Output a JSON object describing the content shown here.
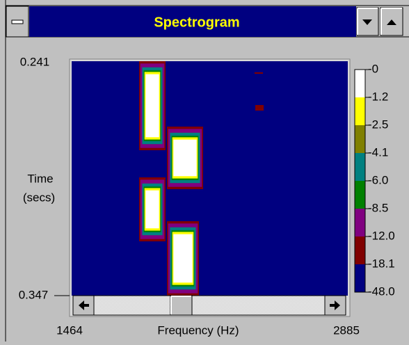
{
  "window": {
    "title": "Spectrogram"
  },
  "plot": {
    "y_top": "0.241",
    "y_bottom": "0.347",
    "y_label": [
      "Time",
      "(secs)"
    ],
    "x_left": "1464",
    "x_right": "2885",
    "x_label": "Frequency (Hz)"
  },
  "colorbar": {
    "labels": [
      "-0",
      "-1.2",
      "-2.5",
      "-4.1",
      "-6.0",
      "-8.5",
      "-12.0",
      "-18.1",
      "-48.0"
    ],
    "colors": [
      "#ffffff",
      "#ffff00",
      "#808000",
      "#008080",
      "#008000",
      "#800080",
      "#800000",
      "#000080"
    ]
  }
}
